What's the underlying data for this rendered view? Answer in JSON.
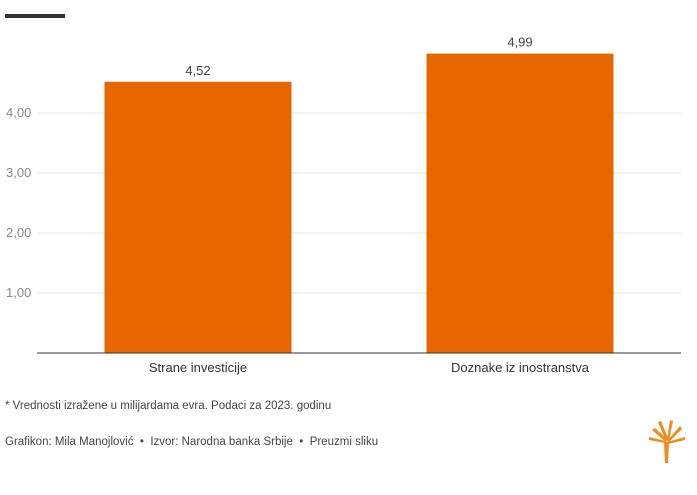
{
  "chart_data": {
    "type": "bar",
    "categories": [
      "Strane investicije",
      "Doznake iz inostranstva"
    ],
    "values": [
      4.52,
      4.99
    ],
    "value_labels": [
      "4,52",
      "4,99"
    ],
    "ylim": [
      0,
      5
    ],
    "yticks": [
      1,
      2,
      3,
      4
    ],
    "ytick_labels": [
      "1,00",
      "2,00",
      "3,00",
      "4,00"
    ],
    "grid": true,
    "bar_color": "#E86600"
  },
  "footer": {
    "note": "* Vrednosti izražene u milijardama evra. Podaci za 2023. godinu",
    "credit_author": "Grafikon: Mila Manojlović",
    "separator": "•",
    "credit_source": "Izvor: Narodna banka Srbije",
    "credit_download": "Preuzmi sliku"
  },
  "colors": {
    "accent": "#E86600",
    "logo": "#F08A1C"
  },
  "icons": {
    "logo": "rfe-rl-torch-icon"
  }
}
